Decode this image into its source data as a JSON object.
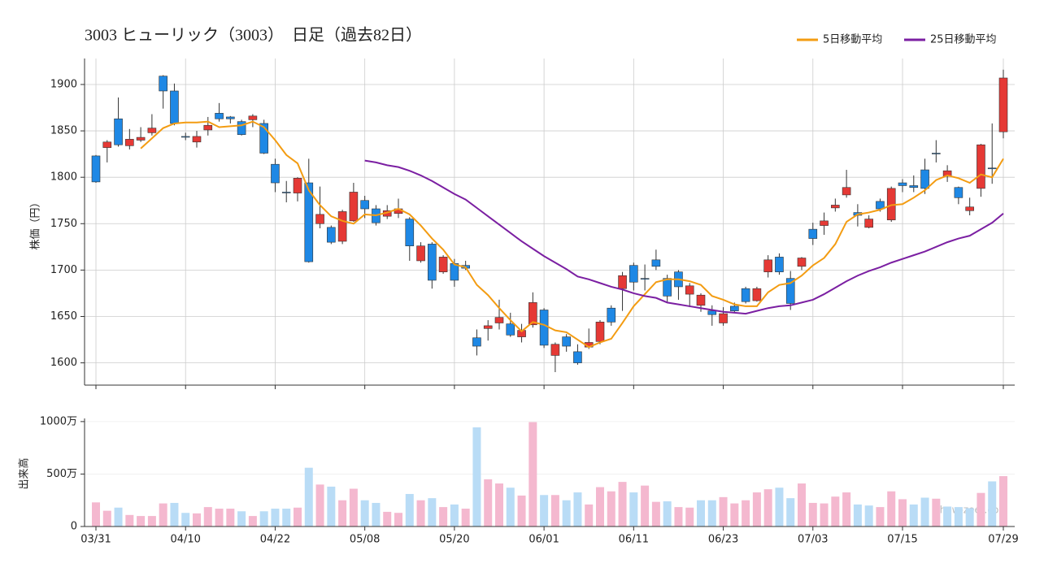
{
  "chart_data": [
    {
      "type": "candlestick",
      "title": "3003 ヒューリック（3003）　日足（過去82日）",
      "ylabel": "株価（円）",
      "ylim": [
        1576,
        1928
      ],
      "yticks": [
        1600,
        1650,
        1700,
        1750,
        1800,
        1850,
        1900
      ],
      "grid": true,
      "up_color": "#e53935",
      "down_color": "#1e88e5",
      "open": [
        1823,
        1832,
        1863,
        1834,
        1840,
        1848,
        1909,
        1893,
        1844,
        1838,
        1851,
        1869,
        1865,
        1860,
        1862,
        1858,
        1814,
        1784,
        1783,
        1794,
        1750,
        1746,
        1731,
        1753,
        1775,
        1766,
        1758,
        1761,
        1755,
        1710,
        1728,
        1698,
        1707,
        1705,
        1627,
        1637,
        1643,
        1642,
        1628,
        1641,
        1657,
        1608,
        1628,
        1612,
        1617,
        1623,
        1659,
        1680,
        1705,
        1691,
        1711,
        1691,
        1698,
        1674,
        1662,
        1656,
        1643,
        1661,
        1680,
        1667,
        1698,
        1714,
        1691,
        1704,
        1744,
        1748,
        1767,
        1781,
        1762,
        1746,
        1774,
        1754,
        1794,
        1791,
        1808,
        1826,
        1801,
        1789,
        1764,
        1788,
        1810,
        1849
      ],
      "high": [
        1824,
        1840,
        1886,
        1852,
        1854,
        1868,
        1910,
        1901,
        1848,
        1850,
        1865,
        1880,
        1866,
        1862,
        1868,
        1862,
        1820,
        1796,
        1800,
        1820,
        1790,
        1748,
        1765,
        1794,
        1780,
        1770,
        1770,
        1777,
        1757,
        1730,
        1730,
        1716,
        1712,
        1710,
        1636,
        1646,
        1668,
        1654,
        1642,
        1676,
        1659,
        1622,
        1631,
        1620,
        1637,
        1646,
        1662,
        1698,
        1708,
        1706,
        1722,
        1695,
        1700,
        1686,
        1675,
        1662,
        1660,
        1665,
        1682,
        1682,
        1716,
        1718,
        1699,
        1714,
        1751,
        1762,
        1777,
        1808,
        1771,
        1759,
        1777,
        1790,
        1798,
        1802,
        1820,
        1840,
        1813,
        1790,
        1778,
        1836,
        1858,
        1916
      ],
      "low": [
        1794,
        1816,
        1833,
        1830,
        1838,
        1845,
        1874,
        1856,
        1840,
        1832,
        1845,
        1860,
        1858,
        1845,
        1854,
        1825,
        1784,
        1773,
        1774,
        1708,
        1745,
        1728,
        1728,
        1752,
        1756,
        1748,
        1755,
        1756,
        1710,
        1708,
        1680,
        1696,
        1682,
        1700,
        1608,
        1624,
        1636,
        1628,
        1622,
        1638,
        1616,
        1590,
        1612,
        1598,
        1615,
        1620,
        1640,
        1656,
        1678,
        1678,
        1700,
        1665,
        1668,
        1660,
        1655,
        1640,
        1640,
        1654,
        1664,
        1666,
        1692,
        1695,
        1657,
        1700,
        1727,
        1738,
        1763,
        1778,
        1747,
        1745,
        1763,
        1752,
        1784,
        1784,
        1782,
        1816,
        1795,
        1771,
        1759,
        1779,
        1793,
        1842
      ],
      "close": [
        1795,
        1838,
        1835,
        1841,
        1843,
        1853,
        1893,
        1858,
        1844,
        1844,
        1856,
        1863,
        1863,
        1846,
        1866,
        1826,
        1794,
        1784,
        1799,
        1709,
        1760,
        1730,
        1763,
        1784,
        1766,
        1751,
        1764,
        1766,
        1726,
        1726,
        1689,
        1714,
        1689,
        1702,
        1618,
        1640,
        1649,
        1630,
        1635,
        1665,
        1619,
        1620,
        1618,
        1600,
        1622,
        1644,
        1644,
        1694,
        1687,
        1691,
        1704,
        1672,
        1682,
        1683,
        1673,
        1652,
        1653,
        1656,
        1666,
        1680,
        1711,
        1698,
        1664,
        1713,
        1734,
        1753,
        1770,
        1789,
        1759,
        1755,
        1766,
        1788,
        1791,
        1789,
        1788,
        1826,
        1807,
        1778,
        1768,
        1835,
        1810,
        1907
      ],
      "series": [
        {
          "name": "5日移動平均",
          "color": "#f39c12",
          "values": [
            null,
            null,
            null,
            null,
            1831,
            1842,
            1853,
            1858,
            1859,
            1859,
            1860,
            1854,
            1855,
            1856,
            1860,
            1854,
            1840,
            1824,
            1815,
            1786,
            1770,
            1758,
            1753,
            1750,
            1760,
            1759,
            1762,
            1766,
            1760,
            1748,
            1734,
            1722,
            1706,
            1703,
            1684,
            1673,
            1659,
            1646,
            1634,
            1644,
            1641,
            1635,
            1633,
            1625,
            1617,
            1622,
            1626,
            1643,
            1661,
            1674,
            1687,
            1690,
            1690,
            1688,
            1684,
            1672,
            1668,
            1663,
            1661,
            1661,
            1676,
            1684,
            1686,
            1694,
            1705,
            1713,
            1728,
            1752,
            1760,
            1762,
            1765,
            1770,
            1771,
            1778,
            1786,
            1797,
            1802,
            1799,
            1794,
            1803,
            1800,
            1820
          ]
        },
        {
          "name": "25日移動平均",
          "color": "#7b1fa2",
          "values": [
            null,
            null,
            null,
            null,
            null,
            null,
            null,
            null,
            null,
            null,
            null,
            null,
            null,
            null,
            null,
            null,
            null,
            null,
            null,
            null,
            null,
            null,
            null,
            null,
            1818,
            1816,
            1813,
            1811,
            1807,
            1802,
            1796,
            1789,
            1782,
            1776,
            1767,
            1758,
            1749,
            1740,
            1731,
            1723,
            1715,
            1708,
            1701,
            1693,
            1690,
            1686,
            1682,
            1679,
            1675,
            1672,
            1670,
            1665,
            1663,
            1661,
            1659,
            1657,
            1655,
            1654,
            1653,
            1656,
            1659,
            1661,
            1662,
            1665,
            1668,
            1674,
            1681,
            1688,
            1694,
            1699,
            1703,
            1708,
            1712,
            1716,
            1720,
            1725,
            1730,
            1734,
            1737,
            1744,
            1751,
            1761
          ]
        }
      ]
    },
    {
      "type": "bar",
      "ylabel": "出来高",
      "categories": [
        "03/31",
        null,
        null,
        null,
        null,
        null,
        null,
        null,
        "04/10",
        null,
        null,
        null,
        null,
        null,
        null,
        null,
        "04/22",
        null,
        null,
        null,
        null,
        null,
        null,
        null,
        "05/08",
        null,
        null,
        null,
        null,
        null,
        null,
        null,
        "05/20",
        null,
        null,
        null,
        null,
        null,
        null,
        null,
        "06/01",
        null,
        null,
        null,
        null,
        null,
        null,
        null,
        "06/11",
        null,
        null,
        null,
        null,
        null,
        null,
        null,
        "06/23",
        null,
        null,
        null,
        null,
        null,
        null,
        null,
        "07/03",
        null,
        null,
        null,
        null,
        null,
        null,
        null,
        "07/15",
        null,
        null,
        null,
        null,
        null,
        null,
        null,
        null,
        "07/29"
      ],
      "values": [
        2300000,
        1500000,
        1800000,
        1100000,
        1000000,
        1000000,
        2200000,
        2250000,
        1300000,
        1250000,
        1850000,
        1700000,
        1700000,
        1450000,
        1000000,
        1450000,
        1700000,
        1700000,
        1800000,
        5600000,
        4000000,
        3800000,
        2500000,
        3600000,
        2500000,
        2250000,
        1400000,
        1300000,
        3100000,
        2500000,
        2700000,
        1850000,
        2100000,
        1700000,
        9450000,
        4500000,
        4100000,
        3700000,
        2950000,
        9950000,
        3000000,
        3000000,
        2500000,
        3250000,
        2100000,
        3750000,
        3350000,
        4250000,
        3250000,
        3900000,
        2350000,
        2400000,
        1850000,
        1800000,
        2500000,
        2500000,
        2800000,
        2200000,
        2500000,
        3250000,
        3550000,
        3700000,
        2700000,
        4100000,
        2250000,
        2200000,
        2850000,
        3250000,
        2100000,
        2000000,
        1850000,
        3350000,
        2600000,
        2100000,
        2750000,
        2650000,
        1900000,
        1850000,
        1750000,
        3200000,
        4300000,
        4800000
      ],
      "up_color": "#f4b8cf",
      "down_color": "#b9dcf6",
      "ylim": [
        0,
        10300000
      ],
      "yticks": [
        0,
        {
          "value": 5000000,
          "label": "500万"
        },
        {
          "value": 10000000,
          "label": "1000万"
        }
      ],
      "grid": true,
      "annotation": "show-zeet.com"
    }
  ]
}
